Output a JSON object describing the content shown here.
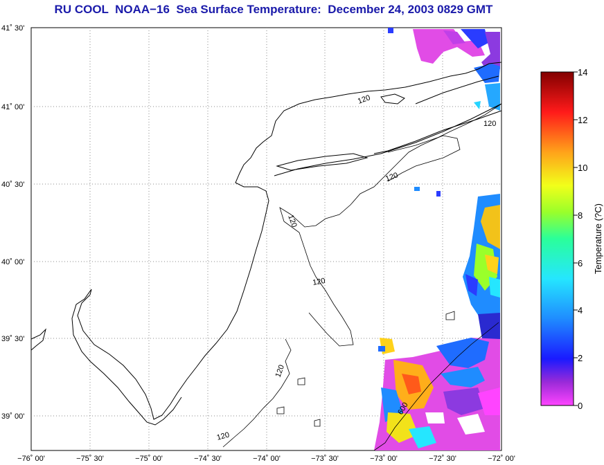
{
  "title": "RU COOL  NOAA−16  Sea Surface Temperature:  December 24, 2003 0829 GMT",
  "title_color": "#1a1aaa",
  "lat_labels": [
    "41˚ 30'",
    "41˚ 00'",
    "40˚ 30'",
    "40˚ 00'",
    "39˚ 30'",
    "39˚ 00'"
  ],
  "lon_labels": [
    "−76˚ 00'",
    "−75˚ 30'",
    "−75˚ 00'",
    "−74˚ 30'",
    "−74˚ 00'",
    "−73˚ 30'",
    "−73˚ 00'",
    "−72˚ 30'",
    "−72˚ 00'"
  ],
  "colorbar": {
    "label": "Temperature (?C)",
    "ticks": [
      "14",
      "12",
      "10",
      "8",
      "6",
      "4",
      "2",
      "0"
    ],
    "range": [
      0,
      14
    ]
  },
  "contour_labels": [
    "120",
    "120",
    "120",
    "120",
    "120",
    "120",
    "120",
    "600"
  ]
}
